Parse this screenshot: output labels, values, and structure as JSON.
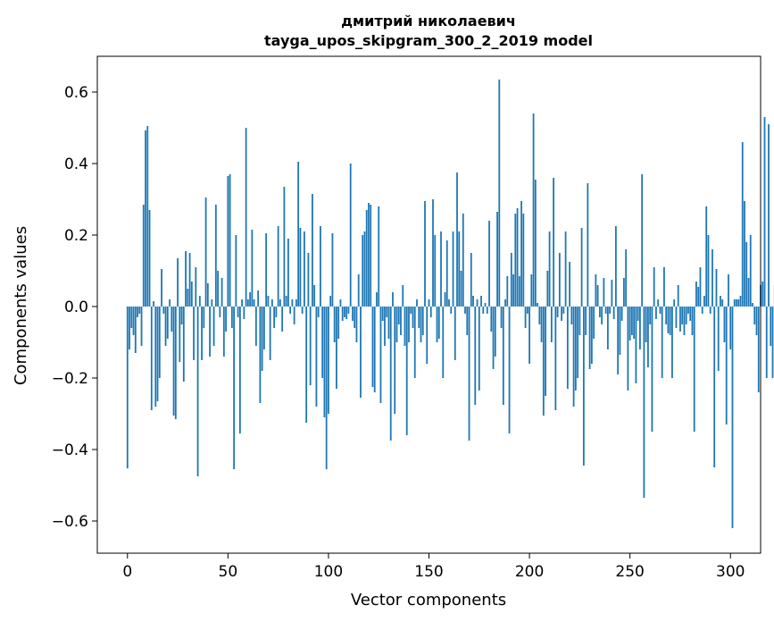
{
  "chart_data": {
    "type": "bar",
    "title": "дмитрий николаевич",
    "subtitle": "tayga_upos_skipgram_300_2_2019 model",
    "xlabel": "Vector components",
    "ylabel": "Components values",
    "xlim": [
      -15,
      315
    ],
    "ylim": [
      -0.69,
      0.7
    ],
    "xticks": [
      0,
      50,
      100,
      150,
      200,
      250,
      300
    ],
    "yticks": [
      -0.6,
      -0.4,
      -0.2,
      0.0,
      0.2,
      0.4,
      0.6
    ],
    "xtick_labels": [
      "0",
      "50",
      "100",
      "150",
      "200",
      "250",
      "300"
    ],
    "ytick_labels": [
      "−0.6",
      "−0.4",
      "−0.2",
      "0.0",
      "0.2",
      "0.4",
      "0.6"
    ],
    "bar_color": "#1f77b4",
    "grid": false,
    "legend": "none",
    "values": [
      -0.453,
      -0.12,
      -0.06,
      -0.08,
      -0.13,
      -0.03,
      -0.02,
      -0.11,
      0.285,
      0.493,
      0.505,
      0.27,
      -0.29,
      0.015,
      -0.28,
      -0.265,
      -0.2,
      0.105,
      -0.02,
      -0.11,
      -0.09,
      0.02,
      -0.07,
      -0.305,
      -0.315,
      0.135,
      -0.155,
      -0.05,
      -0.21,
      0.155,
      0.05,
      0.15,
      0.07,
      -0.15,
      0.11,
      -0.475,
      0.03,
      -0.15,
      -0.06,
      0.305,
      0.065,
      -0.14,
      0.02,
      -0.11,
      0.285,
      0.1,
      -0.03,
      0.08,
      -0.14,
      -0.07,
      0.365,
      0.37,
      -0.06,
      -0.455,
      0.2,
      -0.03,
      -0.355,
      0.02,
      -0.035,
      0.5,
      0.02,
      0.04,
      0.215,
      0.02,
      -0.11,
      0.045,
      -0.27,
      -0.18,
      -0.12,
      0.205,
      0.03,
      -0.15,
      0.02,
      -0.06,
      -0.03,
      0.225,
      0.02,
      -0.07,
      0.335,
      0.03,
      0.19,
      -0.02,
      0.02,
      -0.05,
      0.02,
      0.405,
      0.22,
      -0.02,
      0.21,
      -0.325,
      0.15,
      -0.22,
      0.315,
      0.06,
      -0.28,
      -0.03,
      0.225,
      -0.2,
      -0.31,
      -0.455,
      -0.3,
      0.03,
      0.205,
      -0.1,
      -0.23,
      -0.09,
      0.02,
      -0.04,
      -0.03,
      -0.035,
      -0.02,
      0.4,
      -0.04,
      -0.06,
      -0.1,
      0.09,
      -0.255,
      0.2,
      0.21,
      0.27,
      0.29,
      0.285,
      -0.225,
      -0.24,
      0.04,
      0.28,
      -0.27,
      -0.04,
      -0.11,
      -0.03,
      -0.09,
      -0.375,
      0.04,
      -0.3,
      -0.1,
      -0.05,
      -0.08,
      0.06,
      -0.11,
      -0.36,
      -0.1,
      -0.02,
      -0.06,
      -0.2,
      0.02,
      -0.06,
      -0.1,
      -0.08,
      0.295,
      -0.16,
      0.02,
      -0.03,
      0.3,
      0.2,
      -0.1,
      -0.09,
      0.21,
      -0.2,
      0.04,
      0.185,
      0.02,
      -0.02,
      0.21,
      -0.15,
      0.375,
      0.21,
      0.1,
      0.26,
      -0.02,
      -0.08,
      -0.375,
      0.15,
      0.03,
      -0.275,
      0.02,
      -0.235,
      0.03,
      -0.02,
      0.01,
      -0.02,
      0.24,
      -0.07,
      -0.175,
      -0.14,
      0.265,
      0.635,
      -0.06,
      -0.275,
      0.02,
      0.085,
      -0.355,
      0.15,
      0.09,
      0.26,
      0.275,
      0.085,
      0.295,
      0.26,
      -0.06,
      -0.02,
      -0.16,
      0.09,
      0.54,
      0.355,
      0.01,
      -0.05,
      -0.1,
      -0.305,
      -0.25,
      0.1,
      0.21,
      -0.1,
      0.36,
      -0.29,
      -0.03,
      0.15,
      -0.04,
      -0.02,
      0.21,
      -0.23,
      0.125,
      -0.05,
      -0.28,
      -0.235,
      -0.2,
      -0.08,
      0.22,
      -0.445,
      -0.08,
      0.345,
      -0.175,
      -0.16,
      -0.09,
      0.09,
      0.06,
      -0.03,
      -0.05,
      0.08,
      -0.02,
      -0.12,
      -0.02,
      0.075,
      -0.035,
      0.225,
      -0.19,
      -0.135,
      -0.04,
      0.08,
      0.16,
      -0.235,
      -0.095,
      -0.08,
      -0.09,
      -0.215,
      -0.04,
      -0.12,
      0.37,
      -0.535,
      -0.1,
      -0.17,
      -0.05,
      -0.35,
      0.11,
      -0.035,
      0.02,
      -0.02,
      -0.2,
      0.11,
      -0.05,
      -0.075,
      -0.08,
      -0.2,
      0.02,
      -0.06,
      0.06,
      -0.07,
      -0.05,
      -0.08,
      -0.05,
      -0.02,
      -0.04,
      -0.08,
      -0.35,
      0.07,
      0.055,
      0.11,
      -0.02,
      0.03,
      0.28,
      0.2,
      -0.02,
      0.16,
      -0.45,
      0.105,
      -0.18,
      0.03,
      0.02,
      -0.1,
      -0.33,
      0.09,
      -0.12,
      -0.62,
      0.02,
      0.02,
      0.02,
      0.03,
      0.46,
      0.295,
      0.18,
      0.08,
      0.2,
      0.01,
      -0.05,
      -0.08,
      -0.24,
      0.06,
      0.07,
      0.53,
      -0.2,
      0.51,
      -0.11,
      -0.2,
      0.06
    ]
  }
}
